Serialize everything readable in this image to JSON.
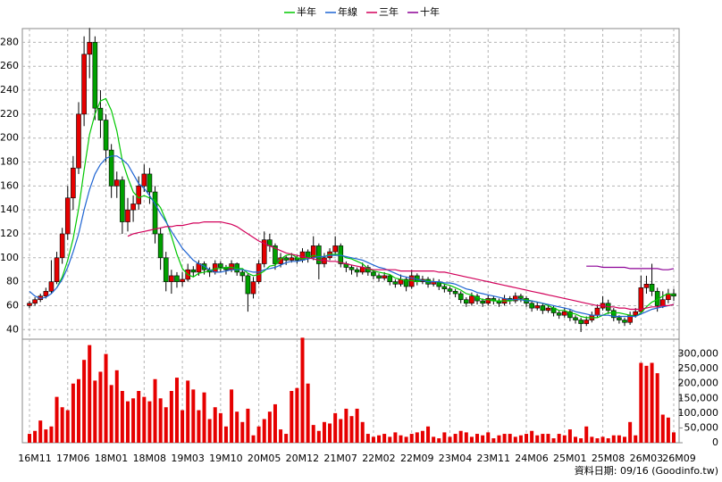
{
  "chart_data": {
    "type": "candlestick",
    "series": [
      {
        "name": "半年",
        "color": "#00c800",
        "values": [
          null,
          null,
          null,
          null,
          null,
          75,
          84,
          98,
          116,
          141,
          173,
          203,
          220,
          231,
          233,
          223,
          206,
          181,
          167,
          155,
          150,
          152,
          150,
          148,
          142,
          131,
          118,
          103,
          91,
          86,
          84,
          87,
          88,
          89,
          91,
          91,
          92,
          92,
          91,
          91,
          87,
          85,
          86,
          89,
          93,
          94,
          99,
          102,
          103,
          100,
          99,
          100,
          102,
          101,
          101,
          103,
          103,
          103,
          100,
          99,
          97,
          95,
          91,
          89,
          88,
          87,
          86,
          83,
          82,
          81,
          81,
          80,
          81,
          81,
          80,
          80,
          78,
          77,
          75,
          73,
          70,
          69,
          67,
          65,
          65,
          64,
          64,
          64,
          64,
          65,
          65,
          65,
          64,
          63,
          62,
          60,
          58,
          56,
          56,
          54,
          53,
          51,
          50,
          50,
          50,
          52,
          54,
          54,
          54,
          53,
          52,
          51,
          54,
          59,
          63,
          65,
          68,
          70,
          69
        ]
      },
      {
        "name": "年線",
        "color": "#1e64d2",
        "values": [
          72,
          68,
          66,
          67,
          70,
          75,
          82,
          92,
          105,
          120,
          140,
          157,
          170,
          178,
          183,
          185,
          185,
          182,
          178,
          170,
          162,
          158,
          152,
          145,
          137,
          130,
          122,
          115,
          108,
          103,
          98,
          95,
          93,
          90,
          88,
          88,
          89,
          90,
          90,
          90,
          89,
          88,
          88,
          90,
          91,
          92,
          94,
          96,
          97,
          97,
          98,
          99,
          100,
          101,
          101,
          102,
          102,
          102,
          101,
          100,
          99,
          98,
          96,
          94,
          92,
          91,
          89,
          87,
          85,
          84,
          83,
          82,
          81,
          80,
          80,
          80,
          79,
          79,
          78,
          76,
          74,
          73,
          71,
          70,
          69,
          68,
          67,
          66,
          65,
          65,
          65,
          64,
          64,
          63,
          62,
          61,
          60,
          59,
          58,
          57,
          55,
          54,
          53,
          52,
          52,
          52,
          52,
          51,
          51,
          51,
          51,
          51,
          53,
          55,
          57,
          58,
          59,
          60,
          61
        ]
      },
      {
        "name": "三年",
        "color": "#d2005a",
        "values": [
          null,
          null,
          null,
          null,
          null,
          null,
          null,
          null,
          null,
          null,
          null,
          null,
          null,
          null,
          null,
          null,
          null,
          null,
          118,
          120,
          121,
          122,
          123,
          124,
          125,
          126,
          126,
          127,
          127,
          128,
          129,
          129,
          130,
          130,
          130,
          130,
          129,
          128,
          126,
          123,
          120,
          117,
          114,
          112,
          110,
          108,
          106,
          104,
          103,
          102,
          101,
          100,
          99,
          98,
          98,
          97,
          97,
          96,
          95,
          94,
          93,
          92,
          91,
          90,
          90,
          90,
          90,
          90,
          89,
          89,
          89,
          89,
          89,
          89,
          89,
          88,
          88,
          87,
          86,
          85,
          84,
          83,
          82,
          81,
          80,
          79,
          78,
          77,
          76,
          75,
          74,
          73,
          72,
          71,
          70,
          69,
          68,
          67,
          66,
          65,
          64,
          63,
          62,
          61,
          60,
          60,
          59,
          59,
          58,
          58,
          57,
          57,
          57,
          58,
          59,
          59,
          60,
          60,
          61
        ]
      },
      {
        "name": "十年",
        "color": "#8c0096",
        "values": [
          null,
          null,
          null,
          null,
          null,
          null,
          null,
          null,
          null,
          null,
          null,
          null,
          null,
          null,
          null,
          null,
          null,
          null,
          null,
          null,
          null,
          null,
          null,
          null,
          null,
          null,
          null,
          null,
          null,
          null,
          null,
          null,
          null,
          null,
          null,
          null,
          null,
          null,
          null,
          null,
          null,
          null,
          null,
          null,
          null,
          null,
          null,
          null,
          null,
          null,
          null,
          null,
          null,
          null,
          null,
          null,
          null,
          null,
          null,
          null,
          null,
          null,
          null,
          null,
          null,
          null,
          null,
          null,
          null,
          null,
          null,
          null,
          null,
          null,
          null,
          null,
          null,
          null,
          null,
          null,
          null,
          null,
          null,
          null,
          null,
          null,
          null,
          null,
          null,
          null,
          null,
          null,
          null,
          null,
          null,
          null,
          null,
          null,
          null,
          null,
          null,
          null,
          93,
          93,
          93,
          92,
          92,
          92,
          92,
          92,
          91,
          91,
          91,
          91,
          91,
          91,
          90,
          90,
          91
        ]
      }
    ],
    "categories": [
      "16M11",
      null,
      null,
      null,
      null,
      null,
      null,
      "17M06",
      null,
      null,
      null,
      null,
      null,
      null,
      "18M01",
      null,
      null,
      null,
      null,
      null,
      null,
      "18M08",
      null,
      null,
      null,
      null,
      null,
      null,
      "19M03",
      null,
      null,
      null,
      null,
      null,
      null,
      "19M10",
      null,
      null,
      null,
      null,
      null,
      null,
      "20M05",
      null,
      null,
      null,
      null,
      null,
      null,
      "20M12",
      null,
      null,
      null,
      null,
      null,
      null,
      "21M07",
      null,
      null,
      null,
      null,
      null,
      null,
      "22M02",
      null,
      null,
      null,
      null,
      null,
      null,
      "22M09",
      null,
      null,
      null,
      null,
      null,
      null,
      "23M04",
      null,
      null,
      null,
      null,
      null,
      null,
      "23M11",
      null,
      null,
      null,
      null,
      null,
      null,
      "24M06",
      null,
      null,
      null,
      null,
      null,
      null,
      "25M01",
      null,
      null,
      null,
      null,
      null,
      null,
      "25M08",
      null,
      null,
      null,
      null,
      null,
      null,
      "26M03",
      null,
      null,
      null,
      null,
      null,
      "26M09"
    ],
    "candles": [
      [
        60,
        64,
        58,
        62
      ],
      [
        62,
        67,
        60,
        65
      ],
      [
        65,
        70,
        63,
        68
      ],
      [
        68,
        75,
        66,
        72
      ],
      [
        72,
        98,
        70,
        80
      ],
      [
        80,
        105,
        78,
        100
      ],
      [
        100,
        125,
        95,
        120
      ],
      [
        120,
        160,
        115,
        150
      ],
      [
        150,
        185,
        140,
        175
      ],
      [
        175,
        230,
        170,
        220
      ],
      [
        220,
        285,
        210,
        270
      ],
      [
        270,
        292,
        250,
        280
      ],
      [
        280,
        285,
        215,
        225
      ],
      [
        225,
        240,
        200,
        215
      ],
      [
        215,
        220,
        180,
        190
      ],
      [
        190,
        195,
        150,
        160
      ],
      [
        160,
        172,
        150,
        165
      ],
      [
        165,
        168,
        120,
        130
      ],
      [
        130,
        150,
        122,
        140
      ],
      [
        140,
        152,
        130,
        145
      ],
      [
        145,
        168,
        140,
        160
      ],
      [
        160,
        178,
        155,
        170
      ],
      [
        170,
        175,
        145,
        155
      ],
      [
        155,
        160,
        112,
        120
      ],
      [
        120,
        125,
        90,
        100
      ],
      [
        100,
        105,
        72,
        80
      ],
      [
        80,
        90,
        70,
        85
      ],
      [
        85,
        88,
        75,
        80
      ],
      [
        80,
        88,
        76,
        82
      ],
      [
        82,
        95,
        80,
        90
      ],
      [
        90,
        93,
        84,
        88
      ],
      [
        88,
        98,
        85,
        95
      ],
      [
        95,
        97,
        86,
        90
      ],
      [
        90,
        92,
        84,
        88
      ],
      [
        88,
        98,
        86,
        95
      ],
      [
        95,
        97,
        88,
        92
      ],
      [
        92,
        94,
        86,
        90
      ],
      [
        90,
        98,
        88,
        95
      ],
      [
        95,
        96,
        85,
        88
      ],
      [
        88,
        90,
        80,
        85
      ],
      [
        85,
        87,
        55,
        70
      ],
      [
        70,
        84,
        66,
        80
      ],
      [
        80,
        98,
        78,
        95
      ],
      [
        95,
        122,
        92,
        115
      ],
      [
        115,
        120,
        105,
        110
      ],
      [
        110,
        112,
        90,
        95
      ],
      [
        95,
        104,
        92,
        100
      ],
      [
        100,
        102,
        94,
        98
      ],
      [
        98,
        104,
        96,
        100
      ],
      [
        100,
        102,
        95,
        98
      ],
      [
        98,
        108,
        96,
        105
      ],
      [
        105,
        107,
        96,
        100
      ],
      [
        100,
        118,
        98,
        110
      ],
      [
        110,
        112,
        82,
        95
      ],
      [
        95,
        104,
        92,
        100
      ],
      [
        100,
        108,
        98,
        105
      ],
      [
        105,
        118,
        102,
        110
      ],
      [
        110,
        112,
        92,
        95
      ],
      [
        95,
        97,
        88,
        92
      ],
      [
        92,
        94,
        86,
        90
      ],
      [
        90,
        92,
        84,
        88
      ],
      [
        88,
        96,
        86,
        92
      ],
      [
        92,
        94,
        85,
        88
      ],
      [
        88,
        90,
        82,
        85
      ],
      [
        85,
        87,
        80,
        83
      ],
      [
        83,
        88,
        81,
        85
      ],
      [
        85,
        86,
        77,
        80
      ],
      [
        80,
        82,
        75,
        78
      ],
      [
        78,
        86,
        76,
        82
      ],
      [
        82,
        84,
        72,
        76
      ],
      [
        76,
        90,
        74,
        85
      ],
      [
        85,
        87,
        77,
        80
      ],
      [
        80,
        85,
        78,
        82
      ],
      [
        82,
        84,
        75,
        78
      ],
      [
        78,
        83,
        76,
        80
      ],
      [
        80,
        82,
        73,
        76
      ],
      [
        76,
        78,
        71,
        74
      ],
      [
        74,
        76,
        69,
        72
      ],
      [
        72,
        74,
        67,
        70
      ],
      [
        70,
        72,
        62,
        65
      ],
      [
        65,
        67,
        59,
        62
      ],
      [
        62,
        71,
        60,
        68
      ],
      [
        68,
        70,
        61,
        64
      ],
      [
        64,
        66,
        59,
        62
      ],
      [
        62,
        69,
        60,
        66
      ],
      [
        66,
        68,
        61,
        64
      ],
      [
        64,
        66,
        59,
        62
      ],
      [
        62,
        69,
        60,
        66
      ],
      [
        66,
        68,
        61,
        64
      ],
      [
        64,
        71,
        62,
        68
      ],
      [
        68,
        70,
        63,
        66
      ],
      [
        66,
        68,
        59,
        62
      ],
      [
        62,
        64,
        55,
        58
      ],
      [
        58,
        63,
        56,
        60
      ],
      [
        60,
        62,
        53,
        56
      ],
      [
        56,
        61,
        54,
        58
      ],
      [
        58,
        60,
        51,
        54
      ],
      [
        54,
        56,
        49,
        52
      ],
      [
        52,
        58,
        50,
        55
      ],
      [
        55,
        57,
        47,
        50
      ],
      [
        50,
        52,
        45,
        48
      ],
      [
        48,
        50,
        38,
        45
      ],
      [
        45,
        51,
        43,
        48
      ],
      [
        48,
        55,
        46,
        52
      ],
      [
        52,
        61,
        50,
        58
      ],
      [
        58,
        68,
        56,
        62
      ],
      [
        62,
        65,
        53,
        56
      ],
      [
        56,
        58,
        47,
        50
      ],
      [
        50,
        52,
        45,
        48
      ],
      [
        48,
        50,
        43,
        46
      ],
      [
        46,
        55,
        44,
        52
      ],
      [
        52,
        58,
        50,
        55
      ],
      [
        55,
        85,
        53,
        75
      ],
      [
        75,
        85,
        70,
        78
      ],
      [
        78,
        95,
        68,
        72
      ],
      [
        72,
        75,
        55,
        60
      ],
      [
        60,
        72,
        58,
        65
      ],
      [
        65,
        74,
        62,
        70
      ],
      [
        70,
        74,
        64,
        68
      ]
    ],
    "up_color": "#e60000",
    "down_color": "#00a000",
    "ylim": [
      32,
      290
    ],
    "yticks": [
      40,
      60,
      80,
      100,
      120,
      140,
      160,
      180,
      200,
      220,
      240,
      260,
      280
    ],
    "volume": {
      "color": "#e60000",
      "ylim": [
        0,
        350000
      ],
      "yticks": [
        0,
        {
          "value": 50000,
          "label": "50,000"
        },
        {
          "value": 100000,
          "label": "100,000"
        },
        {
          "value": 150000,
          "label": "150,000"
        },
        {
          "value": 200000,
          "label": "200,000"
        },
        {
          "value": 250000,
          "label": "250,000"
        },
        {
          "value": 300000,
          "label": "300,000"
        }
      ],
      "values": [
        30000,
        40000,
        75000,
        45000,
        55000,
        155000,
        120000,
        110000,
        200000,
        215000,
        280000,
        330000,
        210000,
        240000,
        300000,
        195000,
        245000,
        175000,
        140000,
        150000,
        175000,
        155000,
        140000,
        215000,
        150000,
        120000,
        175000,
        220000,
        110000,
        210000,
        180000,
        110000,
        170000,
        80000,
        120000,
        100000,
        55000,
        180000,
        105000,
        70000,
        115000,
        25000,
        55000,
        80000,
        105000,
        130000,
        45000,
        30000,
        175000,
        185000,
        355000,
        200000,
        60000,
        40000,
        70000,
        65000,
        100000,
        80000,
        115000,
        90000,
        115000,
        70000,
        30000,
        20000,
        25000,
        30000,
        20000,
        35000,
        25000,
        20000,
        30000,
        35000,
        40000,
        55000,
        20000,
        15000,
        35000,
        20000,
        30000,
        40000,
        35000,
        20000,
        30000,
        25000,
        35000,
        15000,
        25000,
        30000,
        30000,
        20000,
        25000,
        30000,
        40000,
        25000,
        30000,
        30000,
        15000,
        30000,
        25000,
        45000,
        20000,
        15000,
        55000,
        20000,
        15000,
        20000,
        15000,
        25000,
        25000,
        20000,
        70000,
        25000,
        270000,
        260000,
        270000,
        235000,
        95000,
        85000,
        35000
      ]
    },
    "grid": true,
    "note": "資料日期: 09/16  (Goodinfo.tw)"
  }
}
